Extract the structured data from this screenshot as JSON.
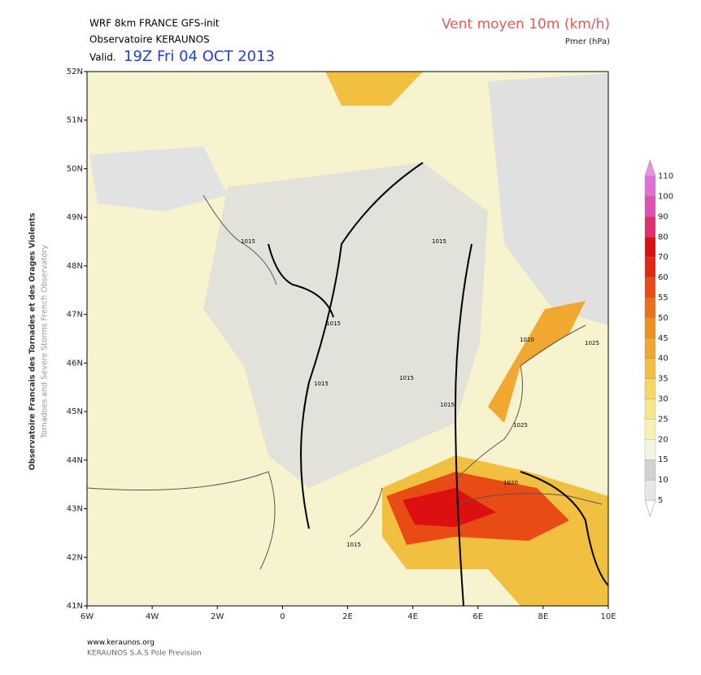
{
  "header": {
    "model": "WRF 8km FRANCE   GFS-init",
    "org": "Observatoire KERAUNOS",
    "valid_prefix": "Valid.",
    "valid": "19Z Fri 04 OCT 2013",
    "field": "Vent moyen 10m (km/h)",
    "subfield": "Pmer (hPa)"
  },
  "axes": {
    "x_labels": [
      "6W",
      "4W",
      "2W",
      "0",
      "2E",
      "4E",
      "6E",
      "8E",
      "10E"
    ],
    "y_labels": [
      "41N",
      "42N",
      "43N",
      "44N",
      "45N",
      "46N",
      "47N",
      "48N",
      "49N",
      "50N",
      "51N",
      "52N"
    ]
  },
  "colorbar": {
    "levels": [
      5,
      10,
      15,
      20,
      25,
      30,
      35,
      40,
      45,
      50,
      55,
      60,
      70,
      80,
      90,
      100,
      110
    ],
    "colors": [
      "#ffffff",
      "#e6e6e6",
      "#d2d2d2",
      "#f6f4dc",
      "#f8f2b0",
      "#f6e88a",
      "#f4d860",
      "#f2c040",
      "#f0a830",
      "#ee9020",
      "#ec7018",
      "#e84c14",
      "#e42810",
      "#dc1010",
      "#e03070",
      "#e050b0",
      "#e070d8",
      "#e890e8"
    ]
  },
  "isobar_labels": [
    "1015",
    "1015",
    "1015",
    "1015",
    "1015",
    "1015",
    "1015",
    "1020",
    "1020",
    "1025",
    "1025"
  ],
  "side": {
    "fr": "Observatoire Francais des Tornades et des Orages Violents",
    "en": "Tornadoes and Severe Storms French Observatory"
  },
  "footer": {
    "site": "www.keraunos.org",
    "company": "KERAUNOS S.A.S Pole Prevision"
  }
}
